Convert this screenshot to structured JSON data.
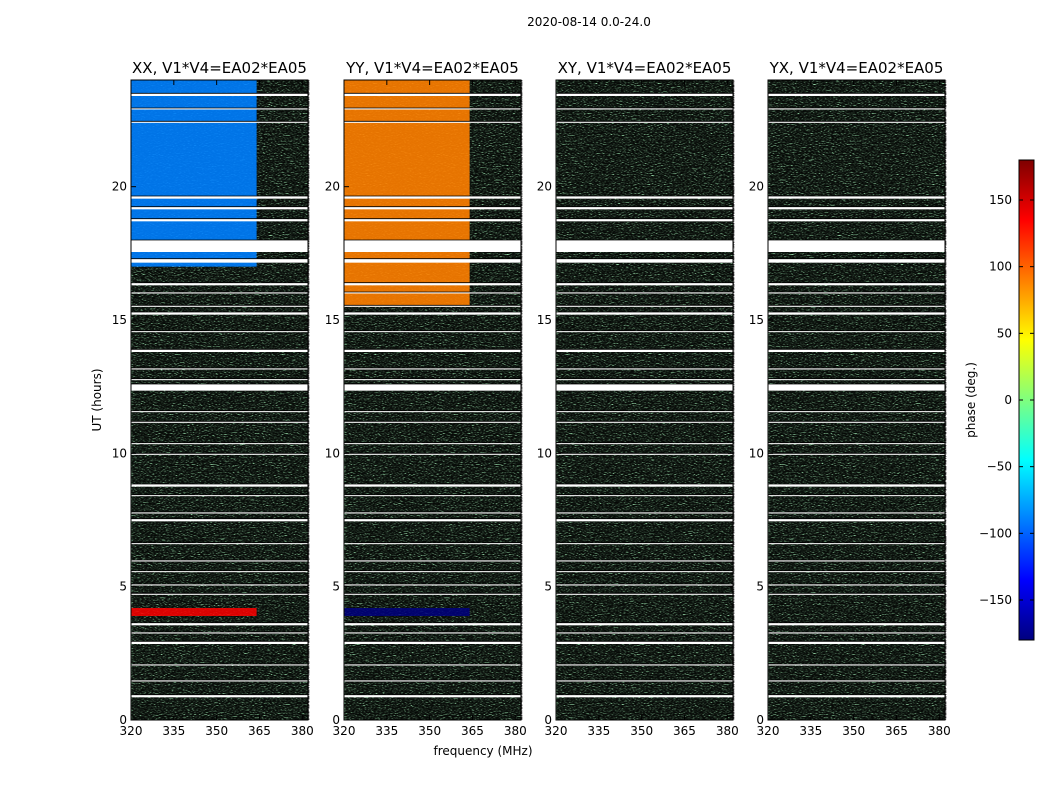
{
  "chart_data": {
    "type": "heatmap",
    "suptitle": "2020-08-14 0.0-24.0",
    "xlabel": "frequency (MHz)",
    "ylabel": "UT (hours)",
    "xlim": [
      320,
      382
    ],
    "ylim": [
      0,
      24
    ],
    "xticks": [
      320,
      335,
      350,
      365,
      380
    ],
    "yticks": [
      0,
      5,
      10,
      15,
      20
    ],
    "colorbar": {
      "label": "phase (deg.)",
      "range": [
        -180,
        180
      ],
      "ticks": [
        150,
        100,
        50,
        0,
        -50,
        -100,
        -150
      ],
      "tick_labels": [
        "150",
        "100",
        "50",
        "0",
        "−50",
        "−100",
        "−150"
      ],
      "colormap": "jet",
      "colors": [
        "#00007f",
        "#0000ff",
        "#007fff",
        "#00ffff",
        "#7fff7f",
        "#ffff00",
        "#ff7f00",
        "#ff0000",
        "#7f0000"
      ]
    },
    "panels": [
      {
        "title": "XX, V1*V4=EA02*EA05",
        "coherent_phase_deg": -70,
        "coherent_hours": [
          [
            17.0,
            24.0
          ]
        ],
        "strong_band_hours": [
          [
            3.9,
            4.2
          ]
        ],
        "strong_band_phase_deg": 120
      },
      {
        "title": "YY, V1*V4=EA02*EA05",
        "coherent_phase_deg": 80,
        "coherent_hours": [
          [
            15.5,
            24.0
          ]
        ],
        "strong_band_hours": [
          [
            3.9,
            4.2
          ]
        ],
        "strong_band_phase_deg": -160
      },
      {
        "title": "XY, V1*V4=EA02*EA05",
        "coherent_phase_deg": null,
        "coherent_hours": [],
        "strong_band_hours": [],
        "strong_band_phase_deg": null
      },
      {
        "title": "YX, V1*V4=EA02*EA05",
        "coherent_phase_deg": null,
        "coherent_hours": [],
        "strong_band_hours": [],
        "strong_band_phase_deg": null
      }
    ],
    "flagged_hours": [
      [
        0.85,
        0.95
      ],
      [
        1.45,
        1.5
      ],
      [
        2.05,
        2.1
      ],
      [
        2.85,
        2.95
      ],
      [
        3.25,
        3.3
      ],
      [
        3.55,
        3.65
      ],
      [
        4.7,
        4.75
      ],
      [
        5.05,
        5.1
      ],
      [
        5.55,
        5.6
      ],
      [
        5.95,
        6.0
      ],
      [
        6.6,
        6.65
      ],
      [
        7.45,
        7.55
      ],
      [
        7.75,
        7.8
      ],
      [
        8.4,
        8.45
      ],
      [
        8.75,
        8.85
      ],
      [
        9.95,
        10.0
      ],
      [
        10.35,
        10.4
      ],
      [
        11.15,
        11.2
      ],
      [
        11.55,
        11.6
      ],
      [
        12.35,
        12.6
      ],
      [
        12.75,
        12.8
      ],
      [
        13.15,
        13.2
      ],
      [
        13.8,
        13.9
      ],
      [
        14.55,
        14.6
      ],
      [
        15.2,
        15.3
      ],
      [
        15.5,
        15.55
      ],
      [
        16.0,
        16.05
      ],
      [
        16.3,
        16.4
      ],
      [
        17.15,
        17.3
      ],
      [
        17.55,
        18.0
      ],
      [
        18.7,
        18.8
      ],
      [
        19.15,
        19.25
      ],
      [
        19.55,
        19.65
      ],
      [
        22.4,
        22.45
      ],
      [
        22.9,
        22.95
      ],
      [
        23.4,
        23.5
      ]
    ]
  }
}
